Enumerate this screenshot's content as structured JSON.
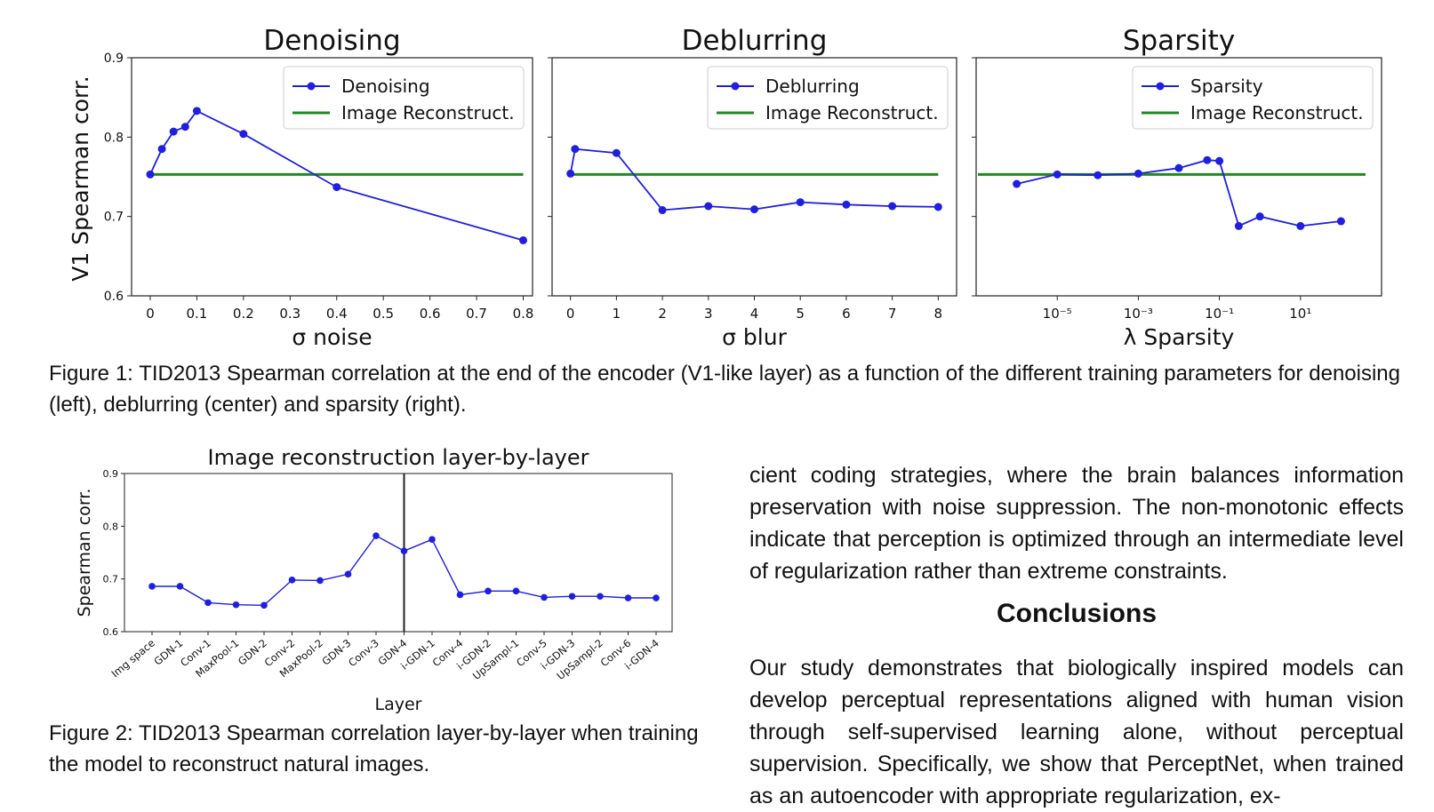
{
  "figure1": {
    "caption": "Figure 1: TID2013 Spearman correlation at the end of the encoder (V1-like layer) as a function of the different training parameters for denoising (left), deblurring (center) and sparsity (right).",
    "ylabel": "V1 Spearman corr.",
    "y_ticks": [
      "0.6",
      "0.7",
      "0.8",
      "0.9"
    ],
    "colors": {
      "series": "#1f1fe0",
      "reference": "#1f8a1f"
    },
    "legend_reference": "Image Reconstruct.",
    "panels": [
      {
        "title": "Denoising",
        "legend_series": "Denoising",
        "xlabel": "σ noise",
        "x_ticks": [
          "0",
          "0.1",
          "0.2",
          "0.3",
          "0.4",
          "0.5",
          "0.6",
          "0.7",
          "0.8"
        ]
      },
      {
        "title": "Deblurring",
        "legend_series": "Deblurring",
        "xlabel": "σ blur",
        "x_ticks": [
          "0",
          "1",
          "2",
          "3",
          "4",
          "5",
          "6",
          "7",
          "8"
        ]
      },
      {
        "title": "Sparsity",
        "legend_series": "Sparsity",
        "xlabel": "λ Sparsity",
        "x_ticks": [
          "10⁻⁵",
          "10⁻³",
          "10⁻¹",
          "10¹"
        ]
      }
    ]
  },
  "figure2": {
    "caption": "Figure 2: TID2013 Spearman correlation layer-by-layer when training the model to reconstruct natural images.",
    "title": "Image reconstruction layer-by-layer",
    "ylabel": "Spearman corr.",
    "xlabel": "Layer",
    "y_ticks": [
      "0.6",
      "0.7",
      "0.8",
      "0.9"
    ]
  },
  "body": {
    "paragraph1": "cient coding strategies, where the brain balances information preservation with noise suppression.  The non-monotonic effects indicate that perception is optimized through an intermediate level of regularization rather than extreme constraints.",
    "heading": "Conclusions",
    "paragraph2": "Our study demonstrates that biologically inspired models can develop perceptual representations aligned with human vision through self-supervised learning alone, without perceptual supervision. Specifically, we show that PerceptNet, when trained as an autoencoder with appropriate regularization, ex-"
  },
  "chart_data": [
    {
      "type": "line",
      "title": "Denoising",
      "xlabel": "σ noise",
      "ylabel": "V1 Spearman corr.",
      "xlim": [
        -0.04,
        0.82
      ],
      "ylim": [
        0.6,
        0.9
      ],
      "legend": "top-right",
      "series": [
        {
          "name": "Denoising",
          "x": [
            0,
            0.025,
            0.05,
            0.075,
            0.1,
            0.2,
            0.4,
            0.8
          ],
          "y": [
            0.753,
            0.785,
            0.807,
            0.813,
            0.833,
            0.804,
            0.737,
            0.67
          ]
        },
        {
          "name": "Image Reconstruct.",
          "x": [
            0,
            0.8
          ],
          "y": [
            0.753,
            0.753
          ]
        }
      ]
    },
    {
      "type": "line",
      "title": "Deblurring",
      "xlabel": "σ blur",
      "ylabel": "V1 Spearman corr.",
      "xlim": [
        -0.4,
        8.4
      ],
      "ylim": [
        0.6,
        0.9
      ],
      "legend": "top-right",
      "series": [
        {
          "name": "Deblurring",
          "x": [
            0,
            0.1,
            1,
            2,
            3,
            4,
            5,
            6,
            7,
            8
          ],
          "y": [
            0.754,
            0.785,
            0.78,
            0.708,
            0.713,
            0.709,
            0.718,
            0.715,
            0.713,
            0.712
          ]
        },
        {
          "name": "Image Reconstruct.",
          "x": [
            0,
            8
          ],
          "y": [
            0.753,
            0.753
          ]
        }
      ]
    },
    {
      "type": "line",
      "title": "Sparsity",
      "xlabel": "λ Sparsity",
      "ylabel": "V1 Spearman corr.",
      "xscale": "log",
      "xlim": [
        1e-07,
        1000
      ],
      "ylim": [
        0.6,
        0.9
      ],
      "legend": "top-right",
      "series": [
        {
          "name": "Sparsity",
          "x": [
            1e-06,
            1e-05,
            0.0001,
            0.001,
            0.01,
            0.05,
            0.1,
            0.3,
            1,
            10,
            100
          ],
          "y": [
            0.741,
            0.753,
            0.752,
            0.754,
            0.761,
            0.771,
            0.77,
            0.688,
            0.7,
            0.688,
            0.694
          ]
        },
        {
          "name": "Image Reconstruct.",
          "x": [
            1e-07,
            1000
          ],
          "y": [
            0.753,
            0.753
          ]
        }
      ]
    },
    {
      "type": "line",
      "title": "Image reconstruction layer-by-layer",
      "xlabel": "Layer",
      "ylabel": "Spearman corr.",
      "ylim": [
        0.6,
        0.9
      ],
      "categories": [
        "Img space",
        "GDN-1",
        "Conv-1",
        "MaxPool-1",
        "GDN-2",
        "Conv-2",
        "MaxPool-2",
        "GDN-3",
        "Conv-3",
        "GDN-4",
        "i-GDN-1",
        "Conv-4",
        "i-GDN-2",
        "UpSampl-1",
        "Conv-5",
        "i-GDN-3",
        "UpSampl-2",
        "Conv-6",
        "i-GDN-4"
      ],
      "values": [
        0.686,
        0.686,
        0.655,
        0.651,
        0.65,
        0.698,
        0.697,
        0.709,
        0.782,
        0.753,
        0.775,
        0.67,
        0.677,
        0.677,
        0.665,
        0.667,
        0.667,
        0.664,
        0.664
      ],
      "vertical_marker": "GDN-4"
    }
  ]
}
